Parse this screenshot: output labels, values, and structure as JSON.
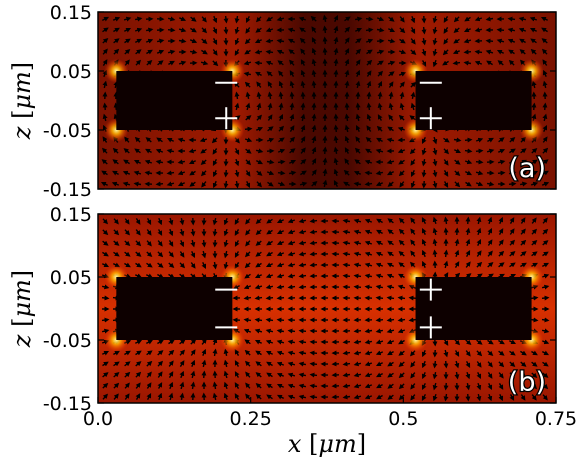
{
  "chart_data": {
    "type": "heatmap",
    "shared_x_axis": {
      "label_var": "x",
      "label_unit_open": " [",
      "label_unit": "μm",
      "label_unit_close": "]",
      "range": [
        0.0,
        0.75
      ],
      "ticks": [
        0.0,
        0.25,
        0.5,
        0.75
      ],
      "tick_labels": [
        "0.0",
        "0.25",
        "0.5",
        "0.75"
      ]
    },
    "panels": [
      {
        "panel_label": "(a)",
        "y_axis": {
          "label_var": "z",
          "label_unit_open": " [",
          "label_unit": "μm",
          "label_unit_close": "]",
          "range": [
            -0.15,
            0.15
          ],
          "ticks": [
            0.15,
            0.05,
            -0.05,
            -0.15
          ],
          "tick_labels": [
            "0.15",
            "0.05",
            "-0.05",
            "-0.15"
          ]
        },
        "rods": [
          {
            "x": [
              0.03,
              0.22
            ],
            "z": [
              -0.05,
              0.05
            ]
          },
          {
            "x": [
              0.52,
              0.71
            ],
            "z": [
              -0.05,
              0.05
            ]
          }
        ],
        "charges": [
          {
            "x": 0.21,
            "z": 0.03,
            "sign": "-"
          },
          {
            "x": 0.21,
            "z": -0.03,
            "sign": "+"
          },
          {
            "x": 0.545,
            "z": 0.03,
            "sign": "-"
          },
          {
            "x": 0.545,
            "z": -0.03,
            "sign": "+"
          }
        ],
        "mode": "antisymmetric"
      },
      {
        "panel_label": "(b)",
        "y_axis": {
          "label_var": "z",
          "label_unit_open": " [",
          "label_unit": "μm",
          "label_unit_close": "]",
          "range": [
            -0.15,
            0.15
          ],
          "ticks": [
            0.15,
            0.05,
            -0.05,
            -0.15
          ],
          "tick_labels": [
            "0.15",
            "0.05",
            "-0.05",
            "-0.15"
          ]
        },
        "rods": [
          {
            "x": [
              0.03,
              0.22
            ],
            "z": [
              -0.05,
              0.05
            ]
          },
          {
            "x": [
              0.52,
              0.71
            ],
            "z": [
              -0.05,
              0.05
            ]
          }
        ],
        "charges": [
          {
            "x": 0.21,
            "z": 0.03,
            "sign": "-"
          },
          {
            "x": 0.21,
            "z": -0.03,
            "sign": "-"
          },
          {
            "x": 0.545,
            "z": 0.03,
            "sign": "+"
          },
          {
            "x": 0.545,
            "z": -0.03,
            "sign": "+"
          }
        ],
        "mode": "dipolar"
      }
    ],
    "colormap": "hot",
    "overlay": "field-vector arrows"
  },
  "colors": {
    "rod": "#0d0000",
    "background_a": "#5a0a00",
    "background_b": "#b81c00",
    "arrow": "#000000",
    "hot_spot": "#ffee44"
  }
}
